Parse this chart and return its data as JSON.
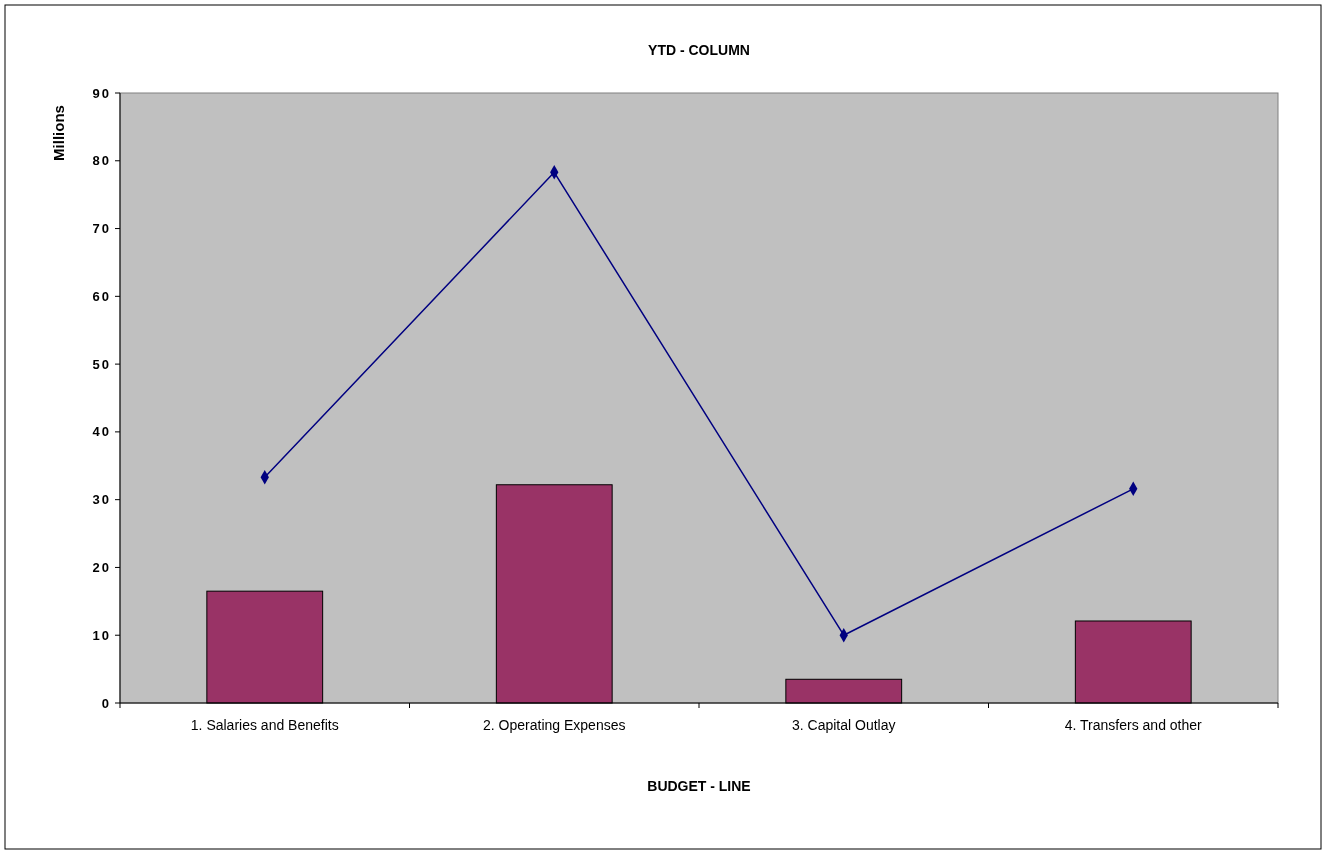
{
  "chart_data": {
    "type": "bar",
    "title": "YTD - COLUMN",
    "xlabel": "BUDGET - LINE",
    "ylabel": "Millions",
    "categories": [
      "1. Salaries and Benefits",
      "2. Operating Expenses",
      "3. Capital Outlay",
      "4. Transfers and other"
    ],
    "series": [
      {
        "color": "#993366",
        "values": [
          16.5,
          32.2,
          3.5,
          12.1
        ]
      },
      {
        "type": "line",
        "color": "#000080",
        "values": [
          33.3,
          78.3,
          10.0,
          31.6
        ],
        "marker": "diamond",
        "line_style": "solid"
      }
    ],
    "ylim": [
      0,
      90
    ],
    "yticks": [
      0,
      10,
      20,
      30,
      40,
      50,
      60,
      70,
      80,
      90
    ],
    "grid": false
  }
}
